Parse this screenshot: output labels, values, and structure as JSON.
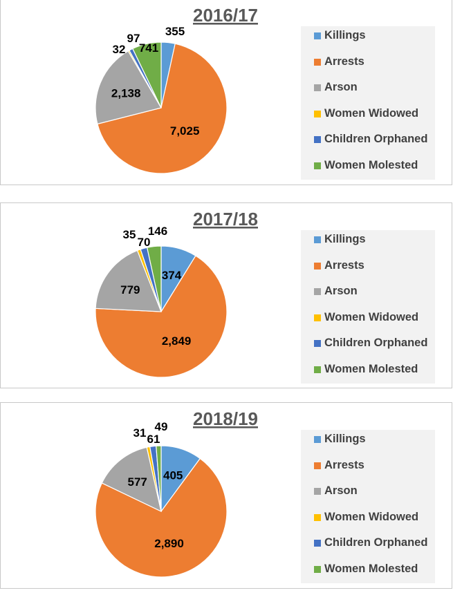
{
  "legend_labels": [
    "Killings",
    "Arrests",
    "Arson",
    "Women Widowed",
    "Children Orphaned",
    "Women Molested"
  ],
  "colors": [
    "#5b9bd5",
    "#ed7d31",
    "#a5a5a5",
    "#ffc000",
    "#4472c4",
    "#70ad47"
  ],
  "chart_data": [
    {
      "type": "pie",
      "title": "2016/17",
      "categories": [
        "Killings",
        "Arrests",
        "Arson",
        "Women Widowed",
        "Children Orphaned",
        "Women Molested"
      ],
      "values": [
        355,
        7025,
        2138,
        32,
        97,
        741
      ],
      "value_labels": [
        "355",
        "7,025",
        "2,138",
        "32",
        "97",
        "741"
      ],
      "legend_position": "right"
    },
    {
      "type": "pie",
      "title": "2017/18",
      "categories": [
        "Killings",
        "Arrests",
        "Arson",
        "Women Widowed",
        "Children Orphaned",
        "Women Molested"
      ],
      "values": [
        374,
        2849,
        779,
        35,
        70,
        146
      ],
      "value_labels": [
        "374",
        "2,849",
        "779",
        "35",
        "70",
        "146"
      ],
      "legend_position": "right"
    },
    {
      "type": "pie",
      "title": "2018/19",
      "categories": [
        "Killings",
        "Arrests",
        "Arson",
        "Women Widowed",
        "Children Orphaned",
        "Women Molested"
      ],
      "values": [
        405,
        2890,
        577,
        31,
        61,
        49
      ],
      "value_labels": [
        "405",
        "2,890",
        "577",
        "31",
        "61",
        "49"
      ],
      "legend_position": "right"
    }
  ]
}
